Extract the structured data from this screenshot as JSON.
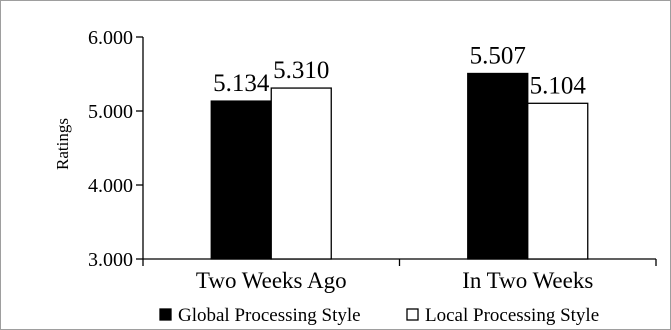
{
  "chart_data": {
    "type": "bar",
    "ylabel": "Ratings",
    "ylim": [
      3,
      6
    ],
    "yticks": [
      "3.000",
      "4.000",
      "5.000",
      "6.000"
    ],
    "categories": [
      "Two Weeks Ago",
      "In Two Weeks"
    ],
    "series": [
      {
        "name": "Global Processing Style",
        "values": [
          5.134,
          5.507
        ],
        "labels": [
          "5.134",
          "5.507"
        ],
        "fill": "#000000"
      },
      {
        "name": "Local Processing Style",
        "values": [
          5.31,
          5.104
        ],
        "labels": [
          "5.310",
          "5.104"
        ],
        "fill": "#ffffff"
      }
    ],
    "legend_position": "bottom",
    "grid": false
  }
}
